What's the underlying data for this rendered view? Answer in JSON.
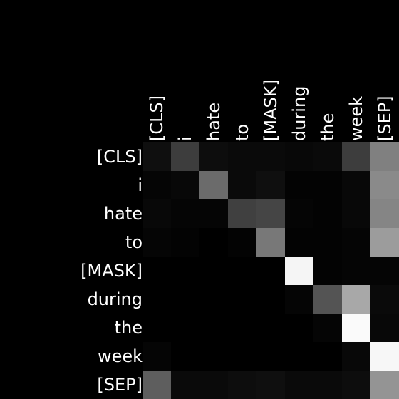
{
  "chart_data": {
    "type": "heatmap",
    "title": "",
    "xlabel": "",
    "ylabel": "",
    "x_labels": [
      "[CLS]",
      "i",
      "hate",
      "to",
      "[MASK]",
      "during",
      "the",
      "week",
      "[SEP]"
    ],
    "y_labels": [
      "[CLS]",
      "i",
      "hate",
      "to",
      "[MASK]",
      "during",
      "the",
      "week",
      "[SEP]"
    ],
    "x_label_position": "top",
    "colormap": "grayscale (black = 0, white = 1)",
    "background_color": "#000000",
    "text_color": "#ffffff",
    "values": [
      [
        0.06,
        0.24,
        0.05,
        0.04,
        0.04,
        0.03,
        0.04,
        0.24,
        0.5
      ],
      [
        0.02,
        0.03,
        0.42,
        0.04,
        0.06,
        0.01,
        0.01,
        0.03,
        0.54
      ],
      [
        0.03,
        0.02,
        0.02,
        0.25,
        0.27,
        0.02,
        0.01,
        0.03,
        0.52
      ],
      [
        0.02,
        0.01,
        0.0,
        0.01,
        0.47,
        0.01,
        0.01,
        0.02,
        0.61
      ],
      [
        0.0,
        0.0,
        0.0,
        0.0,
        0.0,
        0.96,
        0.01,
        0.02,
        0.02
      ],
      [
        0.0,
        0.0,
        0.0,
        0.0,
        0.0,
        0.02,
        0.33,
        0.66,
        0.04
      ],
      [
        0.0,
        0.0,
        0.0,
        0.0,
        0.0,
        0.0,
        0.02,
        0.98,
        0.03
      ],
      [
        0.02,
        0.0,
        0.0,
        0.0,
        0.0,
        0.0,
        0.0,
        0.03,
        0.97
      ],
      [
        0.37,
        0.04,
        0.04,
        0.05,
        0.06,
        0.04,
        0.04,
        0.05,
        0.58
      ]
    ]
  }
}
